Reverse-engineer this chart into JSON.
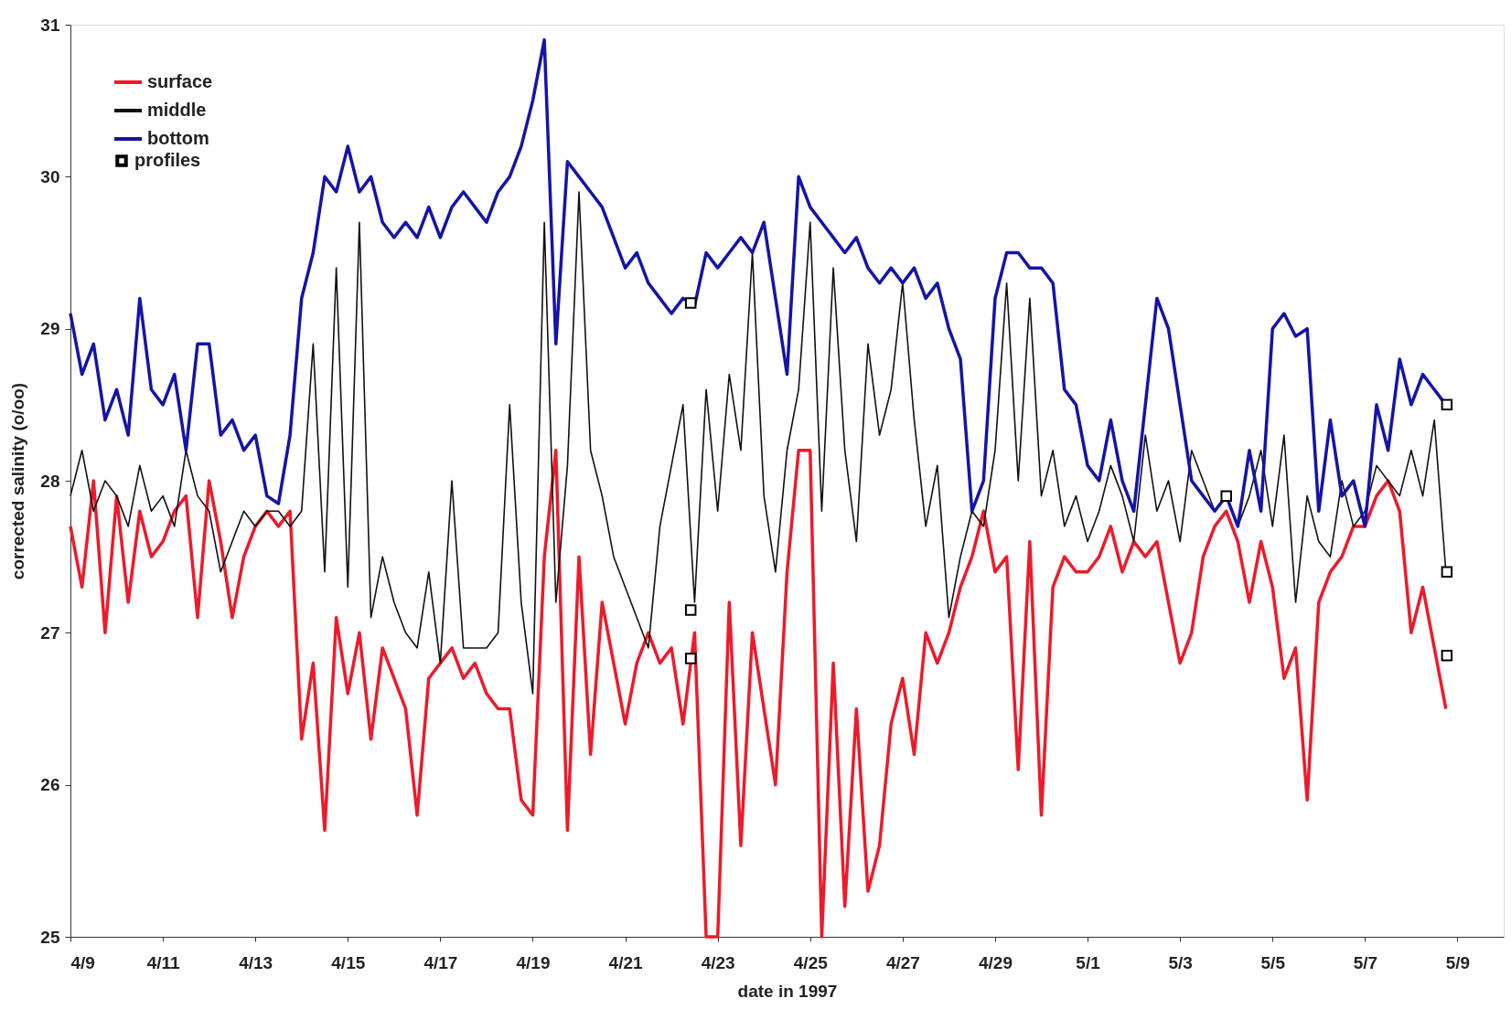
{
  "chart_data": {
    "type": "line",
    "xlabel": "date in 1997",
    "ylabel": "corrected salinity (o/oo)",
    "x": [
      "1997-04-09T00:00",
      "1997-04-09T06:00",
      "1997-04-09T12:00",
      "1997-04-09T18:00",
      "1997-04-10T00:00",
      "1997-04-10T06:00",
      "1997-04-10T12:00",
      "1997-04-10T18:00",
      "1997-04-11T00:00",
      "1997-04-11T06:00",
      "1997-04-11T12:00",
      "1997-04-11T18:00",
      "1997-04-12T00:00",
      "1997-04-12T06:00",
      "1997-04-12T12:00",
      "1997-04-12T18:00",
      "1997-04-13T00:00",
      "1997-04-13T06:00",
      "1997-04-13T12:00",
      "1997-04-13T18:00",
      "1997-04-14T00:00",
      "1997-04-14T06:00",
      "1997-04-14T12:00",
      "1997-04-14T18:00",
      "1997-04-15T00:00",
      "1997-04-15T06:00",
      "1997-04-15T12:00",
      "1997-04-15T18:00",
      "1997-04-16T00:00",
      "1997-04-16T06:00",
      "1997-04-16T12:00",
      "1997-04-16T18:00",
      "1997-04-17T00:00",
      "1997-04-17T06:00",
      "1997-04-17T12:00",
      "1997-04-17T18:00",
      "1997-04-18T00:00",
      "1997-04-18T06:00",
      "1997-04-18T12:00",
      "1997-04-18T18:00",
      "1997-04-19T00:00",
      "1997-04-19T06:00",
      "1997-04-19T12:00",
      "1997-04-19T18:00",
      "1997-04-20T00:00",
      "1997-04-20T06:00",
      "1997-04-20T12:00",
      "1997-04-20T18:00",
      "1997-04-21T00:00",
      "1997-04-21T06:00",
      "1997-04-21T12:00",
      "1997-04-21T18:00",
      "1997-04-22T00:00",
      "1997-04-22T06:00",
      "1997-04-22T12:00",
      "1997-04-22T18:00",
      "1997-04-23T00:00",
      "1997-04-23T06:00",
      "1997-04-23T12:00",
      "1997-04-23T18:00",
      "1997-04-24T00:00",
      "1997-04-24T06:00",
      "1997-04-24T12:00",
      "1997-04-24T18:00",
      "1997-04-25T00:00",
      "1997-04-25T06:00",
      "1997-04-25T12:00",
      "1997-04-25T18:00",
      "1997-04-26T00:00",
      "1997-04-26T06:00",
      "1997-04-26T12:00",
      "1997-04-26T18:00",
      "1997-04-27T00:00",
      "1997-04-27T06:00",
      "1997-04-27T12:00",
      "1997-04-27T18:00",
      "1997-04-28T00:00",
      "1997-04-28T06:00",
      "1997-04-28T12:00",
      "1997-04-28T18:00",
      "1997-04-29T00:00",
      "1997-04-29T06:00",
      "1997-04-29T12:00",
      "1997-04-29T18:00",
      "1997-04-30T00:00",
      "1997-04-30T06:00",
      "1997-04-30T12:00",
      "1997-04-30T18:00",
      "1997-05-01T00:00",
      "1997-05-01T06:00",
      "1997-05-01T12:00",
      "1997-05-01T18:00",
      "1997-05-02T00:00",
      "1997-05-02T06:00",
      "1997-05-02T12:00",
      "1997-05-02T18:00",
      "1997-05-03T00:00",
      "1997-05-03T06:00",
      "1997-05-03T12:00",
      "1997-05-03T18:00",
      "1997-05-04T00:00",
      "1997-05-04T06:00",
      "1997-05-04T12:00",
      "1997-05-04T18:00",
      "1997-05-05T00:00",
      "1997-05-05T06:00",
      "1997-05-05T12:00",
      "1997-05-05T18:00",
      "1997-05-06T00:00",
      "1997-05-06T06:00",
      "1997-05-06T12:00",
      "1997-05-06T18:00",
      "1997-05-07T00:00",
      "1997-05-07T06:00",
      "1997-05-07T12:00",
      "1997-05-07T18:00",
      "1997-05-08T00:00",
      "1997-05-08T06:00",
      "1997-05-08T12:00",
      "1997-05-08T18:00"
    ],
    "series": [
      {
        "name": "surface",
        "color": "#ee1a2a",
        "values": [
          27.7,
          27.3,
          28.0,
          27.0,
          27.9,
          27.2,
          27.8,
          27.5,
          27.6,
          27.8,
          27.9,
          27.1,
          28.0,
          27.6,
          27.1,
          27.5,
          27.7,
          27.8,
          27.7,
          27.8,
          26.3,
          26.8,
          25.7,
          27.1,
          26.6,
          27.0,
          26.3,
          26.9,
          26.7,
          26.5,
          25.8,
          26.7,
          26.8,
          26.9,
          26.7,
          26.8,
          26.6,
          26.5,
          26.5,
          25.9,
          25.8,
          27.5,
          28.2,
          25.7,
          27.5,
          26.2,
          27.2,
          26.8,
          26.4,
          26.8,
          27.0,
          26.8,
          26.9,
          26.4,
          27.0,
          25.0,
          25.0,
          27.2,
          25.6,
          27.0,
          26.5,
          26.0,
          27.4,
          28.2,
          28.2,
          25.0,
          26.8,
          25.2,
          26.5,
          25.3,
          25.6,
          26.4,
          26.7,
          26.2,
          27.0,
          26.8,
          27.0,
          27.3,
          27.5,
          27.8,
          27.4,
          27.5,
          26.1,
          27.6,
          25.8,
          27.3,
          27.5,
          27.4,
          27.4,
          27.5,
          27.7,
          27.4,
          27.6,
          27.5,
          27.6,
          27.2,
          26.8,
          27.0,
          27.5,
          27.7,
          27.8,
          27.6,
          27.2,
          27.6,
          27.3,
          26.7,
          26.9,
          25.9,
          27.2,
          27.4,
          27.5,
          27.7,
          27.7,
          27.9,
          28.0,
          27.8,
          27.0,
          27.3,
          26.9,
          26.5
        ]
      },
      {
        "name": "middle",
        "color": "#111111",
        "values": [
          27.9,
          28.2,
          27.8,
          28.0,
          27.9,
          27.7,
          28.1,
          27.8,
          27.9,
          27.7,
          28.2,
          27.9,
          27.8,
          27.4,
          27.6,
          27.8,
          27.7,
          27.8,
          27.8,
          27.7,
          27.8,
          28.9,
          27.4,
          29.4,
          27.3,
          29.7,
          27.1,
          27.5,
          27.2,
          27.0,
          26.9,
          27.4,
          26.8,
          28.0,
          26.9,
          26.9,
          26.9,
          27.0,
          28.5,
          27.2,
          26.6,
          29.7,
          27.2,
          28.1,
          29.9,
          28.2,
          27.9,
          27.5,
          27.3,
          27.1,
          26.9,
          27.7,
          28.1,
          28.5,
          27.2,
          28.6,
          27.8,
          28.7,
          28.2,
          29.5,
          27.9,
          27.4,
          28.2,
          28.6,
          29.7,
          27.8,
          29.4,
          28.2,
          27.6,
          28.9,
          28.3,
          28.6,
          29.3,
          28.4,
          27.7,
          28.1,
          27.1,
          27.5,
          27.8,
          27.7,
          28.2,
          29.3,
          28.0,
          29.2,
          27.9,
          28.2,
          27.7,
          27.9,
          27.6,
          27.8,
          28.1,
          27.9,
          27.6,
          28.3,
          27.8,
          28.0,
          27.6,
          28.2,
          28.0,
          27.8,
          27.9,
          27.7,
          27.9,
          28.2,
          27.7,
          28.3,
          27.2,
          27.9,
          27.6,
          27.5,
          28.0,
          27.7,
          27.8,
          28.1,
          28.0,
          27.9,
          28.2,
          27.9,
          28.4,
          27.4
        ]
      },
      {
        "name": "bottom",
        "color": "#1414a8",
        "values": [
          29.1,
          28.7,
          28.9,
          28.4,
          28.6,
          28.3,
          29.2,
          28.6,
          28.5,
          28.7,
          28.2,
          28.9,
          28.9,
          28.3,
          28.4,
          28.2,
          28.3,
          27.9,
          27.85,
          28.3,
          29.2,
          29.5,
          30.0,
          29.9,
          30.2,
          29.9,
          30.0,
          29.7,
          29.6,
          29.7,
          29.6,
          29.8,
          29.6,
          29.8,
          29.9,
          29.8,
          29.7,
          29.9,
          30.0,
          30.2,
          30.5,
          30.9,
          28.9,
          30.1,
          30.0,
          29.9,
          29.8,
          29.6,
          29.4,
          29.5,
          29.3,
          29.2,
          29.1,
          29.2,
          29.15,
          29.5,
          29.4,
          29.5,
          29.6,
          29.5,
          29.7,
          29.2,
          28.7,
          30.0,
          29.8,
          29.7,
          29.6,
          29.5,
          29.6,
          29.4,
          29.3,
          29.4,
          29.3,
          29.4,
          29.2,
          29.3,
          29.0,
          28.8,
          27.8,
          28.0,
          29.2,
          29.5,
          29.5,
          29.4,
          29.4,
          29.3,
          28.6,
          28.5,
          28.1,
          28.0,
          28.4,
          28.0,
          27.8,
          28.5,
          29.2,
          29.0,
          28.5,
          28.0,
          27.9,
          27.8,
          27.9,
          27.7,
          28.2,
          27.8,
          29.0,
          29.1,
          28.95,
          29.0,
          27.8,
          28.4,
          27.9,
          28.0,
          27.7,
          28.5,
          28.2,
          28.8,
          28.5,
          28.7,
          28.6,
          28.5
        ]
      },
      {
        "name": "profiles",
        "type": "scatter",
        "marker": "square",
        "color": "#000000",
        "x": [
          "1997-04-22T10:00",
          "1997-04-22T10:00",
          "1997-04-22T10:00",
          "1997-05-04T00:00",
          "1997-05-08T18:30",
          "1997-05-08T18:30",
          "1997-05-08T18:30"
        ],
        "values": [
          29.17,
          27.15,
          26.83,
          27.9,
          28.5,
          27.4,
          26.85
        ]
      }
    ],
    "marker": "none",
    "line_style": "solid",
    "xlim": [
      "1997-04-09T00:00",
      "1997-05-10T00:00"
    ],
    "xticks": [
      {
        "value": "1997-04-09",
        "label": "4/9"
      },
      {
        "value": "1997-04-11",
        "label": "4/11"
      },
      {
        "value": "1997-04-13",
        "label": "4/13"
      },
      {
        "value": "1997-04-15",
        "label": "4/15"
      },
      {
        "value": "1997-04-17",
        "label": "4/17"
      },
      {
        "value": "1997-04-19",
        "label": "4/19"
      },
      {
        "value": "1997-04-21",
        "label": "4/21"
      },
      {
        "value": "1997-04-23",
        "label": "4/23"
      },
      {
        "value": "1997-04-25",
        "label": "4/25"
      },
      {
        "value": "1997-04-27",
        "label": "4/27"
      },
      {
        "value": "1997-04-29",
        "label": "4/29"
      },
      {
        "value": "1997-05-01",
        "label": "5/1"
      },
      {
        "value": "1997-05-03",
        "label": "5/3"
      },
      {
        "value": "1997-05-05",
        "label": "5/5"
      },
      {
        "value": "1997-05-07",
        "label": "5/7"
      },
      {
        "value": "1997-05-09",
        "label": "5/9"
      }
    ],
    "ylim": [
      25,
      31
    ],
    "yticks": [
      25,
      26,
      27,
      28,
      29,
      30,
      31
    ],
    "grid": false,
    "legend": "top left"
  }
}
